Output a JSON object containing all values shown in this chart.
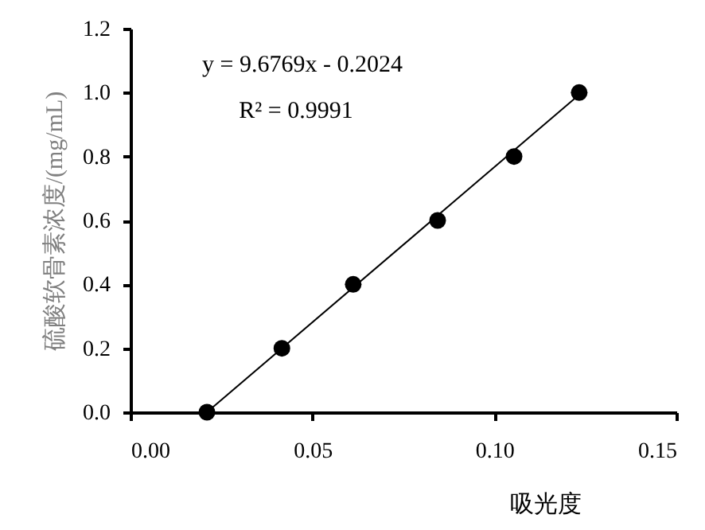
{
  "chart_data": {
    "type": "scatter",
    "xlabel": "吸光度",
    "ylabel": "硫酸软骨素浓度/(mg/mL)",
    "annotations": [
      "y = 9.6769x - 0.2024",
      "R² = 0.9991"
    ],
    "xlim": [
      0,
      0.15
    ],
    "xticks": [
      {
        "value": 0,
        "label": "0.00"
      },
      {
        "value": 0.05,
        "label": "0.05"
      },
      {
        "value": 0.1,
        "label": "0.10"
      },
      {
        "value": 0.15,
        "label": "0.15"
      }
    ],
    "ylim": [
      0,
      1.2
    ],
    "yticks": [
      {
        "value": 0,
        "label": "0.0"
      },
      {
        "value": 0.2,
        "label": "0.2"
      },
      {
        "value": 0.4,
        "label": "0.4"
      },
      {
        "value": 0.6,
        "label": "0.6"
      },
      {
        "value": 0.8,
        "label": "0.8"
      },
      {
        "value": 1.0,
        "label": "1.0"
      },
      {
        "value": 1.2,
        "label": "1.2"
      }
    ],
    "grid": false,
    "legend": false,
    "marker": "circle",
    "series": [
      {
        "color": "#000000",
        "x": [
          0.021,
          0.0416,
          0.0612,
          0.0844,
          0.1054,
          0.1233
        ],
        "values": [
          0.0,
          0.2,
          0.4,
          0.6,
          0.8,
          1.0
        ]
      },
      {
        "type": "line",
        "color": "#000000",
        "line_style": "solid",
        "marker": "none",
        "x": [
          0.021,
          0.124
        ],
        "values": [
          0.0,
          1.0
        ]
      }
    ]
  }
}
